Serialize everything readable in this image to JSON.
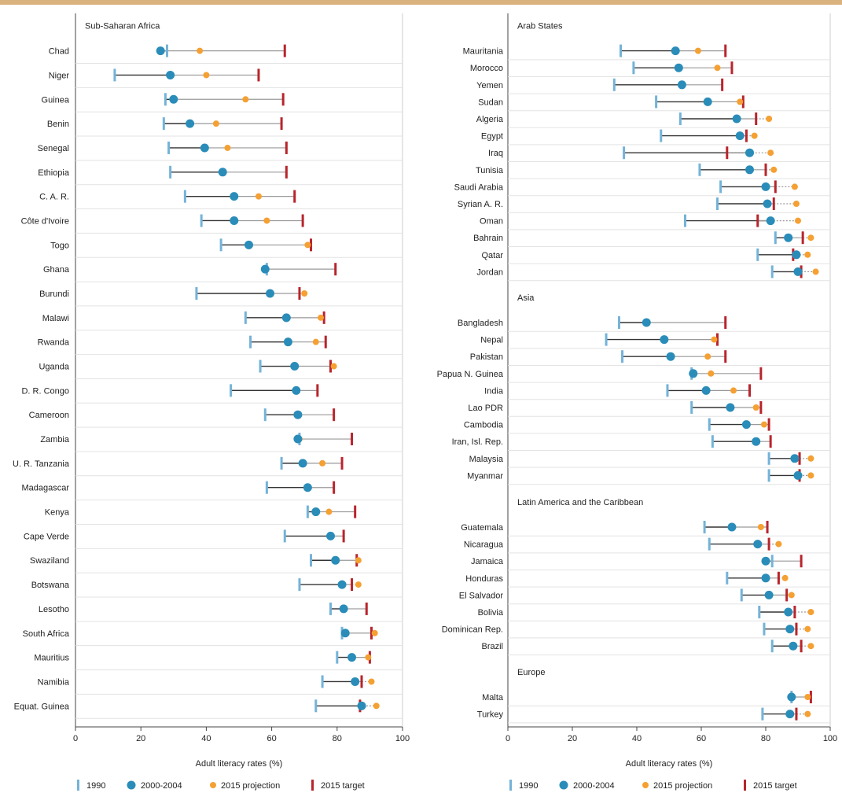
{
  "legend": {
    "baseline": "1990",
    "latest": "2000-2004",
    "projection": "2015 projection",
    "target": "2015 target"
  },
  "colors": {
    "baseline": "#74b3d8",
    "latest": "#2a8cb9",
    "projection": "#f5a032",
    "target": "#b8252c",
    "line_dark": "#333333",
    "line_grey": "#9a9a9a",
    "rule": "#d9b27e"
  },
  "chart_data": [
    {
      "type": "dot-range",
      "xlabel": "Adult literacy rates (%)",
      "xlim": [
        0,
        100
      ],
      "xticks": [
        "0",
        "20",
        "40",
        "60",
        "80",
        "100"
      ],
      "sections": [
        {
          "name": "Sub-Saharan Africa",
          "rows": [
            {
              "country": "Chad",
              "y1990": 28,
              "y2000": 26,
              "proj": 38,
              "target": 64
            },
            {
              "country": "Niger",
              "y1990": 12,
              "y2000": 29,
              "proj": 40,
              "target": 56
            },
            {
              "country": "Guinea",
              "y1990": 27.5,
              "y2000": 30,
              "proj": 52,
              "target": 63.5
            },
            {
              "country": "Benin",
              "y1990": 27,
              "y2000": 35,
              "proj": 43,
              "target": 63
            },
            {
              "country": "Senegal",
              "y1990": 28.5,
              "y2000": 39.5,
              "proj": 46.5,
              "target": 64.5
            },
            {
              "country": "Ethiopia",
              "y1990": 29,
              "y2000": 45,
              "proj": null,
              "target": 64.5
            },
            {
              "country": "C. A. R.",
              "y1990": 33.5,
              "y2000": 48.5,
              "proj": 56,
              "target": 67
            },
            {
              "country": "Côte d'Ivoire",
              "y1990": 38.5,
              "y2000": 48.5,
              "proj": 58.5,
              "target": 69.5
            },
            {
              "country": "Togo",
              "y1990": 44.5,
              "y2000": 53,
              "proj": 71,
              "target": 72
            },
            {
              "country": "Ghana",
              "y1990": 58.5,
              "y2000": 58,
              "proj": null,
              "target": 79.5
            },
            {
              "country": "Burundi",
              "y1990": 37,
              "y2000": 59.5,
              "proj": 70,
              "target": 68.5
            },
            {
              "country": "Malawi",
              "y1990": 52,
              "y2000": 64.5,
              "proj": 75,
              "target": 76
            },
            {
              "country": "Rwanda",
              "y1990": 53.5,
              "y2000": 65,
              "proj": 73.5,
              "target": 76.5
            },
            {
              "country": "Uganda",
              "y1990": 56.5,
              "y2000": 67,
              "proj": 79,
              "target": 78
            },
            {
              "country": "D. R. Congo",
              "y1990": 47.5,
              "y2000": 67.5,
              "proj": 67.5,
              "target": 74
            },
            {
              "country": "Cameroon",
              "y1990": 58,
              "y2000": 68,
              "proj": null,
              "target": 79
            },
            {
              "country": "Zambia",
              "y1990": 68.5,
              "y2000": 68,
              "proj": 68.5,
              "target": 84.5
            },
            {
              "country": "U. R. Tanzania",
              "y1990": 63,
              "y2000": 69.5,
              "proj": 75.5,
              "target": 81.5
            },
            {
              "country": "Madagascar",
              "y1990": 58.5,
              "y2000": 71,
              "proj": 71,
              "target": 79
            },
            {
              "country": "Kenya",
              "y1990": 71,
              "y2000": 73.5,
              "proj": 77.5,
              "target": 85.5
            },
            {
              "country": "Cape Verde",
              "y1990": 64,
              "y2000": 78,
              "proj": null,
              "target": 82
            },
            {
              "country": "Swaziland",
              "y1990": 72,
              "y2000": 79.5,
              "proj": 86.5,
              "target": 86
            },
            {
              "country": "Botswana",
              "y1990": 68.5,
              "y2000": 81.5,
              "proj": 86.5,
              "target": 84.5
            },
            {
              "country": "Lesotho",
              "y1990": 78,
              "y2000": 82,
              "proj": null,
              "target": 89
            },
            {
              "country": "South Africa",
              "y1990": 81.5,
              "y2000": 82.5,
              "proj": 91.5,
              "target": 90.5
            },
            {
              "country": "Mauritius",
              "y1990": 80,
              "y2000": 84.5,
              "proj": 89.5,
              "target": 90
            },
            {
              "country": "Namibia",
              "y1990": 75.5,
              "y2000": 85.5,
              "proj": 90.5,
              "target": 87.5
            },
            {
              "country": "Equat. Guinea",
              "y1990": 73.5,
              "y2000": 87.5,
              "proj": 92,
              "target": 87
            }
          ]
        }
      ]
    },
    {
      "type": "dot-range",
      "xlabel": "Adult literacy rates (%)",
      "xlim": [
        0,
        100
      ],
      "xticks": [
        "0",
        "20",
        "40",
        "60",
        "80",
        "100"
      ],
      "sections": [
        {
          "name": "Arab States",
          "rows": [
            {
              "country": "Mauritania",
              "y1990": 35,
              "y2000": 52,
              "proj": 59,
              "target": 67.5
            },
            {
              "country": "Morocco",
              "y1990": 39,
              "y2000": 53,
              "proj": 65,
              "target": 69.5
            },
            {
              "country": "Yemen",
              "y1990": 33,
              "y2000": 54,
              "proj": null,
              "target": 66.5
            },
            {
              "country": "Sudan",
              "y1990": 46,
              "y2000": 62,
              "proj": 72,
              "target": 73
            },
            {
              "country": "Algeria",
              "y1990": 53.5,
              "y2000": 71,
              "proj": 81,
              "target": 77
            },
            {
              "country": "Egypt",
              "y1990": 47.5,
              "y2000": 72,
              "proj": 76.5,
              "target": 74
            },
            {
              "country": "Iraq",
              "y1990": 36,
              "y2000": 75,
              "proj": 81.5,
              "target": 68
            },
            {
              "country": "Tunisia",
              "y1990": 59.5,
              "y2000": 75,
              "proj": 82.5,
              "target": 80
            },
            {
              "country": "Saudi Arabia",
              "y1990": 66,
              "y2000": 80,
              "proj": 89,
              "target": 83
            },
            {
              "country": "Syrian A. R.",
              "y1990": 65,
              "y2000": 80.5,
              "proj": 89.5,
              "target": 82.5
            },
            {
              "country": "Oman",
              "y1990": 55,
              "y2000": 81.5,
              "proj": 90,
              "target": 77.5
            },
            {
              "country": "Bahrain",
              "y1990": 83,
              "y2000": 87,
              "proj": 94,
              "target": 91.5
            },
            {
              "country": "Qatar",
              "y1990": 77.5,
              "y2000": 89.5,
              "proj": 93,
              "target": 88.5
            },
            {
              "country": "Jordan",
              "y1990": 82,
              "y2000": 90,
              "proj": 95.5,
              "target": 91
            }
          ]
        },
        {
          "name": "Asia",
          "rows": [
            {
              "country": "Bangladesh",
              "y1990": 34.5,
              "y2000": 43,
              "proj": null,
              "target": 67.5
            },
            {
              "country": "Nepal",
              "y1990": 30.5,
              "y2000": 48.5,
              "proj": 64,
              "target": 65
            },
            {
              "country": "Pakistan",
              "y1990": 35.5,
              "y2000": 50.5,
              "proj": 62,
              "target": 67.5
            },
            {
              "country": "Papua N. Guinea",
              "y1990": 57,
              "y2000": 57.5,
              "proj": 63,
              "target": 78.5
            },
            {
              "country": "India",
              "y1990": 49.5,
              "y2000": 61.5,
              "proj": 70,
              "target": 75
            },
            {
              "country": "Lao PDR",
              "y1990": 57,
              "y2000": 69,
              "proj": 77,
              "target": 78.5
            },
            {
              "country": "Cambodia",
              "y1990": 62.5,
              "y2000": 74,
              "proj": 79.5,
              "target": 81
            },
            {
              "country": "Iran, Isl. Rep.",
              "y1990": 63.5,
              "y2000": 77,
              "proj": null,
              "target": 81.5
            },
            {
              "country": "Malaysia",
              "y1990": 81,
              "y2000": 89,
              "proj": 94,
              "target": 90.5
            },
            {
              "country": "Myanmar",
              "y1990": 81,
              "y2000": 90,
              "proj": 94,
              "target": 90.5
            }
          ]
        },
        {
          "name": "Latin America and the Caribbean",
          "rows": [
            {
              "country": "Guatemala",
              "y1990": 61,
              "y2000": 69.5,
              "proj": 78.5,
              "target": 80.5
            },
            {
              "country": "Nicaragua",
              "y1990": 62.5,
              "y2000": 77.5,
              "proj": 84,
              "target": 81
            },
            {
              "country": "Jamaica",
              "y1990": 82,
              "y2000": 80,
              "proj": null,
              "target": 91
            },
            {
              "country": "Honduras",
              "y1990": 68,
              "y2000": 80,
              "proj": 86,
              "target": 84
            },
            {
              "country": "El Salvador",
              "y1990": 72.5,
              "y2000": 81,
              "proj": 88,
              "target": 86.5
            },
            {
              "country": "Bolivia",
              "y1990": 78,
              "y2000": 87,
              "proj": 94,
              "target": 89
            },
            {
              "country": "Dominican Rep.",
              "y1990": 79.5,
              "y2000": 87.5,
              "proj": 93,
              "target": 89.5
            },
            {
              "country": "Brazil",
              "y1990": 82,
              "y2000": 88.5,
              "proj": 94,
              "target": 91
            }
          ]
        },
        {
          "name": "Europe",
          "rows": [
            {
              "country": "Malta",
              "y1990": 88,
              "y2000": 88,
              "proj": 93,
              "target": 94
            },
            {
              "country": "Turkey",
              "y1990": 79,
              "y2000": 87.5,
              "proj": 93,
              "target": 89.5
            }
          ]
        }
      ]
    }
  ]
}
